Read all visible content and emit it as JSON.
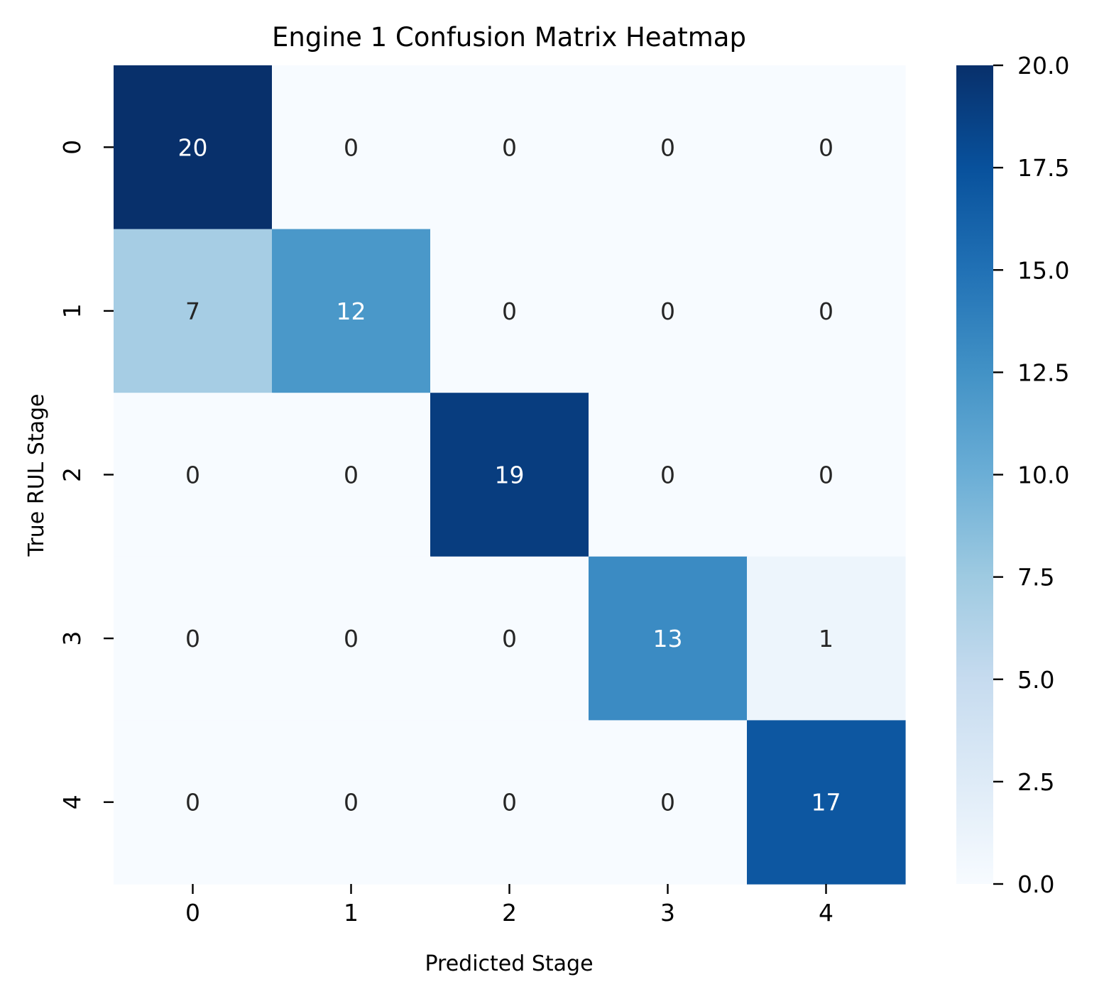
{
  "chart_data": {
    "type": "heatmap",
    "title": "Engine 1 Confusion Matrix Heatmap",
    "xlabel": "Predicted Stage",
    "ylabel": "True RUL Stage",
    "x_categories": [
      "0",
      "1",
      "2",
      "3",
      "4"
    ],
    "y_categories": [
      "0",
      "1",
      "2",
      "3",
      "4"
    ],
    "values": [
      [
        20,
        0,
        0,
        0,
        0
      ],
      [
        7,
        12,
        0,
        0,
        0
      ],
      [
        0,
        0,
        19,
        0,
        0
      ],
      [
        0,
        0,
        0,
        13,
        1
      ],
      [
        0,
        0,
        0,
        0,
        17
      ]
    ],
    "colormap": "Blues",
    "colorbar": {
      "range": [
        0,
        20
      ],
      "ticks": [
        "0.0",
        "2.5",
        "5.0",
        "7.5",
        "10.0",
        "12.5",
        "15.0",
        "17.5",
        "20.0"
      ]
    },
    "annotation_colors": {
      "dark_text": "#262626",
      "light_text": "#ffffff"
    }
  }
}
